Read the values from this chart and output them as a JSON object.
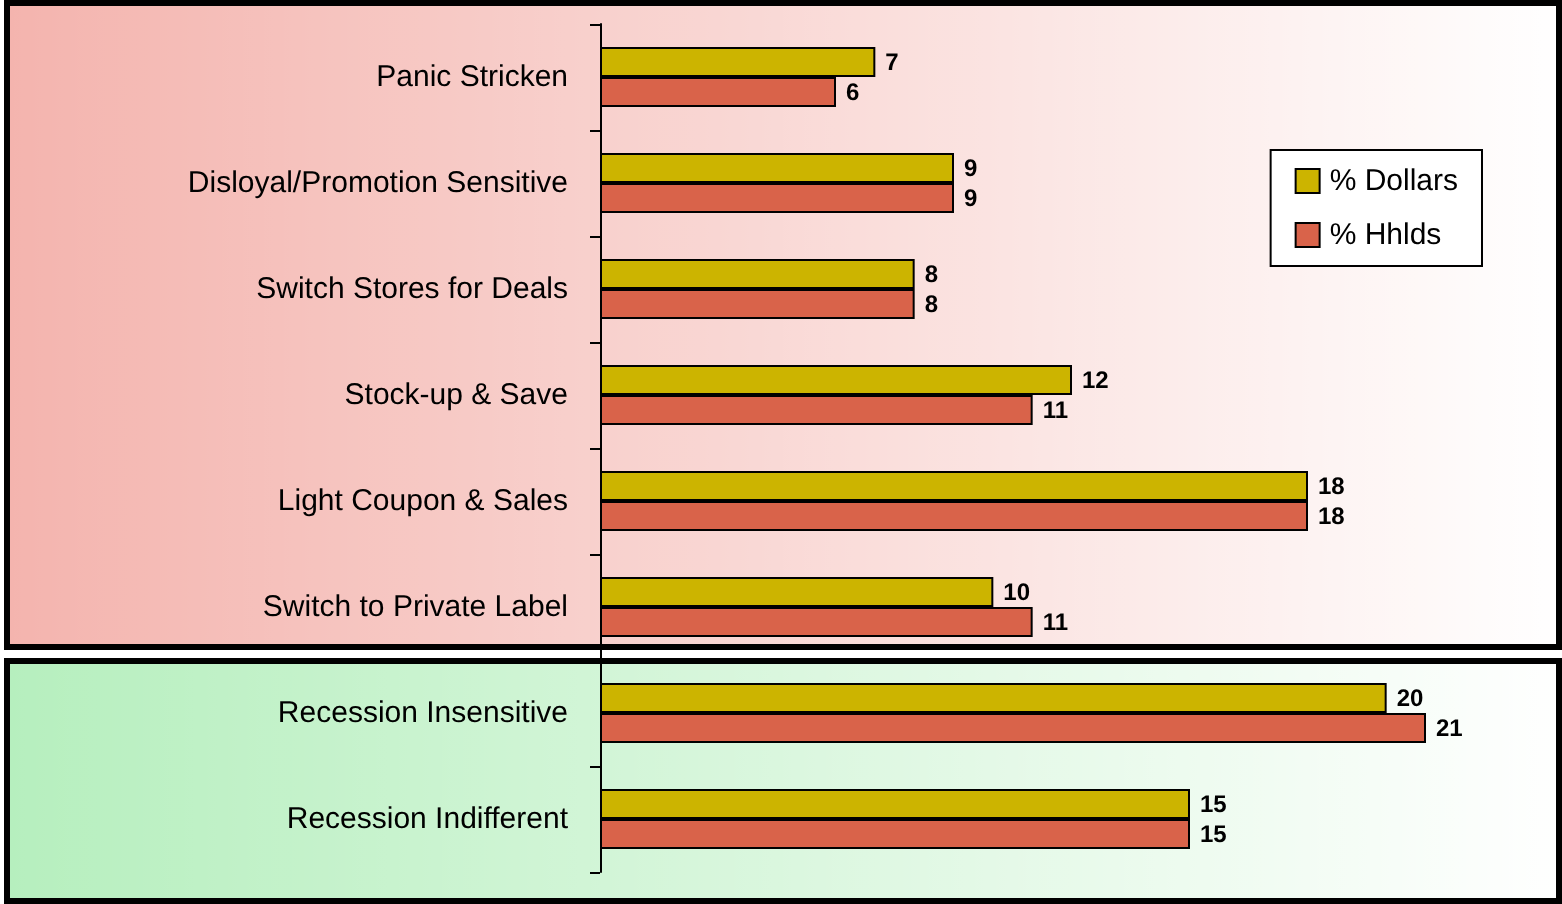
{
  "chart_data": {
    "type": "bar",
    "orientation": "horizontal",
    "categories": [
      "Panic Stricken",
      "Disloyal/Promotion Sensitive",
      "Switch Stores for Deals",
      "Stock-up & Save",
      "Light Coupon & Sales",
      "Switch to Private Label",
      "Recession Insensitive",
      "Recession Indifferent"
    ],
    "series": [
      {
        "name": "% Dollars",
        "color": "#ccb400",
        "values": [
          7,
          9,
          8,
          12,
          18,
          10,
          20,
          15
        ]
      },
      {
        "name": "% Hhlds",
        "color": "#d9634a",
        "values": [
          6,
          9,
          8,
          11,
          18,
          11,
          21,
          15
        ]
      }
    ],
    "bands": [
      {
        "axis": "y",
        "from": "Panic Stricken",
        "to": "Switch to Private Label",
        "color": "#f4b4ae"
      },
      {
        "axis": "y",
        "from": "Recession Insensitive",
        "to": "Recession Indifferent",
        "color": "#b6efbe"
      }
    ],
    "data_labels": true,
    "legend": "top right",
    "grid": false
  }
}
